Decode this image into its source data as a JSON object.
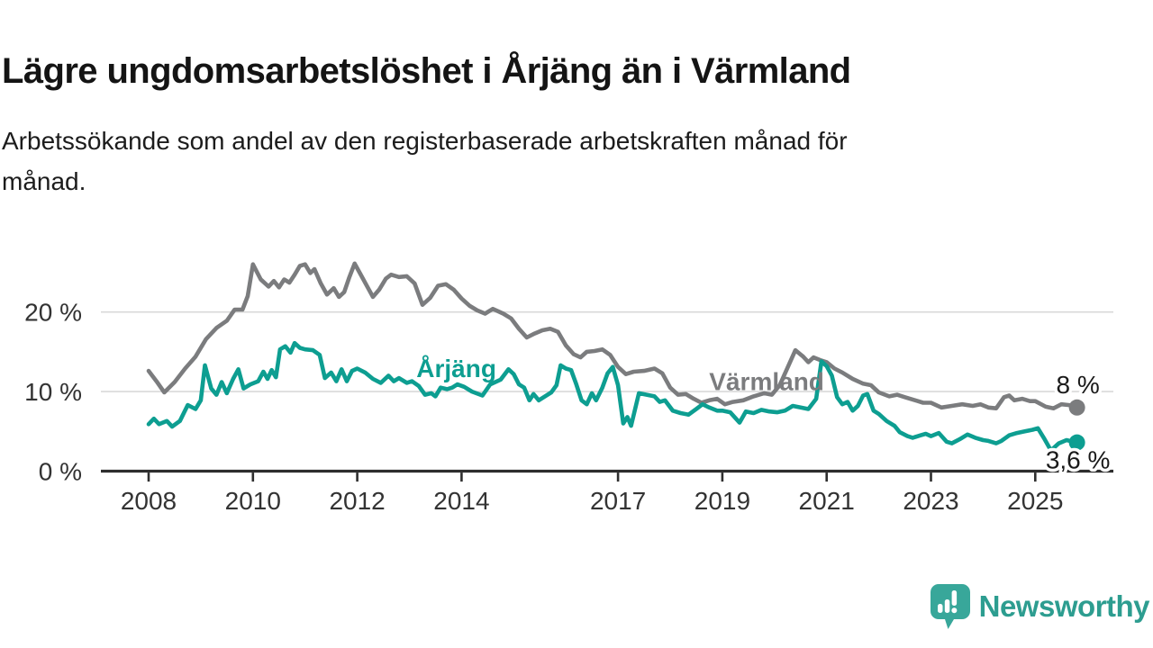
{
  "header": {
    "title": "Lägre ungdomsarbetslöshet i Årjäng än i Värmland",
    "subtitle_lines": [
      "Arbetssökande som andel av den registerbaserade arbetskraften månad för",
      "månad."
    ]
  },
  "footer": {
    "brand": "Newsworthy"
  },
  "colors": {
    "arjang": "#0d9e91",
    "varmland": "#7b7c7e",
    "axis": "#2e2e2e",
    "grid": "#d9d9d9",
    "tick_text": "#333333",
    "end_label_text": "#1a1a1a",
    "brand_teal": "#38a79a"
  },
  "chart_data": {
    "type": "line",
    "title": "Lägre ungdomsarbetslöshet i Årjäng än i Värmland",
    "subtitle": "Arbetssökande som andel av den registerbaserade arbetskraften månad för månad.",
    "xlabel": "",
    "ylabel": "",
    "grid": "horizontal",
    "legend": "inline-labels",
    "xlim": [
      2007.55,
      2026.5
    ],
    "ylim": [
      0,
      27.5
    ],
    "x_ticks": {
      "values": [
        2008,
        2010,
        2012,
        2014,
        2017,
        2019,
        2021,
        2023,
        2025
      ],
      "labels": [
        "2008",
        "2010",
        "2012",
        "2014",
        "2017",
        "2019",
        "2021",
        "2023",
        "2025"
      ]
    },
    "y_ticks": {
      "values": [
        0,
        10,
        20
      ],
      "labels": [
        "0 %",
        "10 %",
        "20 %"
      ]
    },
    "series": [
      {
        "key": "varmland",
        "name": "Värmland",
        "color": "#7b7c7e",
        "label_pos": [
          2019.85,
          11.3
        ],
        "end_label": "8 %",
        "end_label_side": "above",
        "points": [
          [
            2008.0,
            12.6
          ],
          [
            2008.15,
            11.3
          ],
          [
            2008.3,
            9.9
          ],
          [
            2008.5,
            11.2
          ],
          [
            2008.7,
            12.9
          ],
          [
            2008.9,
            14.4
          ],
          [
            2009.1,
            16.6
          ],
          [
            2009.3,
            18.0
          ],
          [
            2009.5,
            18.9
          ],
          [
            2009.65,
            20.3
          ],
          [
            2009.8,
            20.3
          ],
          [
            2009.9,
            22.0
          ],
          [
            2010.0,
            26.0
          ],
          [
            2010.15,
            24.1
          ],
          [
            2010.3,
            23.2
          ],
          [
            2010.4,
            23.9
          ],
          [
            2010.5,
            23.1
          ],
          [
            2010.6,
            24.1
          ],
          [
            2010.7,
            23.7
          ],
          [
            2010.8,
            24.7
          ],
          [
            2010.9,
            25.8
          ],
          [
            2011.0,
            26.0
          ],
          [
            2011.1,
            24.9
          ],
          [
            2011.18,
            25.4
          ],
          [
            2011.3,
            23.6
          ],
          [
            2011.42,
            22.2
          ],
          [
            2011.55,
            23.0
          ],
          [
            2011.65,
            21.9
          ],
          [
            2011.75,
            22.5
          ],
          [
            2011.85,
            24.4
          ],
          [
            2011.95,
            26.1
          ],
          [
            2012.05,
            24.9
          ],
          [
            2012.2,
            23.1
          ],
          [
            2012.3,
            21.9
          ],
          [
            2012.42,
            22.8
          ],
          [
            2012.55,
            24.2
          ],
          [
            2012.65,
            24.7
          ],
          [
            2012.8,
            24.4
          ],
          [
            2012.95,
            24.5
          ],
          [
            2013.1,
            23.6
          ],
          [
            2013.25,
            20.9
          ],
          [
            2013.4,
            21.8
          ],
          [
            2013.55,
            23.3
          ],
          [
            2013.7,
            23.5
          ],
          [
            2013.85,
            22.8
          ],
          [
            2014.0,
            21.7
          ],
          [
            2014.15,
            20.8
          ],
          [
            2014.3,
            20.2
          ],
          [
            2014.45,
            19.8
          ],
          [
            2014.6,
            20.4
          ],
          [
            2014.8,
            19.8
          ],
          [
            2014.95,
            19.2
          ],
          [
            2015.1,
            17.9
          ],
          [
            2015.25,
            16.8
          ],
          [
            2015.4,
            17.3
          ],
          [
            2015.55,
            17.7
          ],
          [
            2015.7,
            17.9
          ],
          [
            2015.85,
            17.5
          ],
          [
            2016.0,
            15.8
          ],
          [
            2016.15,
            14.7
          ],
          [
            2016.28,
            14.3
          ],
          [
            2016.4,
            15.0
          ],
          [
            2016.55,
            15.1
          ],
          [
            2016.7,
            15.3
          ],
          [
            2016.85,
            14.6
          ],
          [
            2017.0,
            13.1
          ],
          [
            2017.15,
            12.2
          ],
          [
            2017.3,
            12.5
          ],
          [
            2017.5,
            12.6
          ],
          [
            2017.7,
            12.9
          ],
          [
            2017.85,
            12.3
          ],
          [
            2018.0,
            10.5
          ],
          [
            2018.15,
            9.6
          ],
          [
            2018.3,
            9.7
          ],
          [
            2018.45,
            9.1
          ],
          [
            2018.6,
            8.6
          ],
          [
            2018.75,
            8.9
          ],
          [
            2018.9,
            9.1
          ],
          [
            2019.05,
            8.4
          ],
          [
            2019.2,
            8.7
          ],
          [
            2019.4,
            8.9
          ],
          [
            2019.6,
            9.4
          ],
          [
            2019.8,
            9.8
          ],
          [
            2019.95,
            9.6
          ],
          [
            2020.1,
            10.8
          ],
          [
            2020.25,
            13.0
          ],
          [
            2020.4,
            15.2
          ],
          [
            2020.55,
            14.4
          ],
          [
            2020.65,
            13.7
          ],
          [
            2020.75,
            14.3
          ],
          [
            2020.9,
            13.9
          ],
          [
            2021.0,
            13.7
          ],
          [
            2021.15,
            12.9
          ],
          [
            2021.3,
            12.4
          ],
          [
            2021.5,
            11.6
          ],
          [
            2021.7,
            11.0
          ],
          [
            2021.85,
            10.8
          ],
          [
            2022.0,
            9.9
          ],
          [
            2022.2,
            9.4
          ],
          [
            2022.35,
            9.6
          ],
          [
            2022.5,
            9.3
          ],
          [
            2022.7,
            8.9
          ],
          [
            2022.85,
            8.6
          ],
          [
            2023.0,
            8.6
          ],
          [
            2023.2,
            8.0
          ],
          [
            2023.4,
            8.2
          ],
          [
            2023.6,
            8.4
          ],
          [
            2023.8,
            8.2
          ],
          [
            2023.95,
            8.4
          ],
          [
            2024.1,
            8.0
          ],
          [
            2024.25,
            7.9
          ],
          [
            2024.4,
            9.3
          ],
          [
            2024.5,
            9.5
          ],
          [
            2024.6,
            8.9
          ],
          [
            2024.75,
            9.1
          ],
          [
            2024.9,
            8.8
          ],
          [
            2025.0,
            8.8
          ],
          [
            2025.2,
            8.1
          ],
          [
            2025.35,
            7.9
          ],
          [
            2025.5,
            8.4
          ],
          [
            2025.65,
            8.3
          ],
          [
            2025.8,
            8.0
          ]
        ]
      },
      {
        "key": "arjang",
        "name": "Årjäng",
        "color": "#0d9e91",
        "label_pos": [
          2013.9,
          12.95
        ],
        "end_label": "3,6 %",
        "end_label_side": "below",
        "points": [
          [
            2008.0,
            5.9
          ],
          [
            2008.1,
            6.6
          ],
          [
            2008.2,
            5.9
          ],
          [
            2008.35,
            6.3
          ],
          [
            2008.45,
            5.6
          ],
          [
            2008.6,
            6.3
          ],
          [
            2008.75,
            8.3
          ],
          [
            2008.9,
            7.8
          ],
          [
            2009.0,
            8.9
          ],
          [
            2009.08,
            13.3
          ],
          [
            2009.2,
            10.4
          ],
          [
            2009.3,
            9.6
          ],
          [
            2009.4,
            11.2
          ],
          [
            2009.5,
            9.8
          ],
          [
            2009.62,
            11.6
          ],
          [
            2009.72,
            12.8
          ],
          [
            2009.82,
            10.4
          ],
          [
            2009.95,
            10.9
          ],
          [
            2010.1,
            11.3
          ],
          [
            2010.2,
            12.5
          ],
          [
            2010.28,
            11.6
          ],
          [
            2010.36,
            12.7
          ],
          [
            2010.44,
            11.8
          ],
          [
            2010.52,
            15.3
          ],
          [
            2010.62,
            15.7
          ],
          [
            2010.72,
            14.9
          ],
          [
            2010.8,
            16.1
          ],
          [
            2010.9,
            15.5
          ],
          [
            2011.0,
            15.3
          ],
          [
            2011.15,
            15.2
          ],
          [
            2011.28,
            14.6
          ],
          [
            2011.38,
            11.7
          ],
          [
            2011.5,
            12.4
          ],
          [
            2011.6,
            11.3
          ],
          [
            2011.7,
            12.8
          ],
          [
            2011.8,
            11.3
          ],
          [
            2011.9,
            12.6
          ],
          [
            2012.0,
            12.9
          ],
          [
            2012.15,
            12.4
          ],
          [
            2012.3,
            11.6
          ],
          [
            2012.45,
            11.1
          ],
          [
            2012.6,
            12.0
          ],
          [
            2012.7,
            11.3
          ],
          [
            2012.8,
            11.7
          ],
          [
            2012.95,
            11.1
          ],
          [
            2013.05,
            11.3
          ],
          [
            2013.18,
            10.7
          ],
          [
            2013.3,
            9.6
          ],
          [
            2013.42,
            9.8
          ],
          [
            2013.5,
            9.4
          ],
          [
            2013.6,
            10.5
          ],
          [
            2013.72,
            10.3
          ],
          [
            2013.82,
            10.5
          ],
          [
            2013.92,
            10.9
          ],
          [
            2014.05,
            10.6
          ],
          [
            2014.2,
            10.0
          ],
          [
            2014.4,
            9.5
          ],
          [
            2014.55,
            10.9
          ],
          [
            2014.75,
            11.5
          ],
          [
            2014.9,
            12.8
          ],
          [
            2015.0,
            12.2
          ],
          [
            2015.1,
            10.9
          ],
          [
            2015.2,
            10.5
          ],
          [
            2015.3,
            8.9
          ],
          [
            2015.38,
            9.7
          ],
          [
            2015.48,
            8.9
          ],
          [
            2015.6,
            9.4
          ],
          [
            2015.72,
            9.9
          ],
          [
            2015.82,
            10.8
          ],
          [
            2015.9,
            13.3
          ],
          [
            2016.0,
            12.9
          ],
          [
            2016.1,
            12.7
          ],
          [
            2016.2,
            10.9
          ],
          [
            2016.3,
            8.9
          ],
          [
            2016.4,
            8.4
          ],
          [
            2016.5,
            9.8
          ],
          [
            2016.58,
            8.9
          ],
          [
            2016.7,
            10.5
          ],
          [
            2016.8,
            12.3
          ],
          [
            2016.9,
            13.1
          ],
          [
            2017.0,
            10.8
          ],
          [
            2017.1,
            6.0
          ],
          [
            2017.18,
            6.8
          ],
          [
            2017.25,
            5.7
          ],
          [
            2017.4,
            9.8
          ],
          [
            2017.55,
            9.6
          ],
          [
            2017.7,
            9.4
          ],
          [
            2017.8,
            8.7
          ],
          [
            2017.9,
            8.9
          ],
          [
            2018.05,
            7.6
          ],
          [
            2018.2,
            7.3
          ],
          [
            2018.35,
            7.1
          ],
          [
            2018.5,
            7.8
          ],
          [
            2018.62,
            8.4
          ],
          [
            2018.75,
            8.0
          ],
          [
            2018.9,
            7.6
          ],
          [
            2019.0,
            7.6
          ],
          [
            2019.15,
            7.4
          ],
          [
            2019.33,
            6.1
          ],
          [
            2019.45,
            7.5
          ],
          [
            2019.6,
            7.3
          ],
          [
            2019.75,
            7.7
          ],
          [
            2019.9,
            7.5
          ],
          [
            2020.05,
            7.4
          ],
          [
            2020.2,
            7.6
          ],
          [
            2020.35,
            8.2
          ],
          [
            2020.5,
            8.0
          ],
          [
            2020.65,
            7.8
          ],
          [
            2020.8,
            9.1
          ],
          [
            2020.9,
            13.8
          ],
          [
            2021.0,
            13.2
          ],
          [
            2021.1,
            12.0
          ],
          [
            2021.2,
            9.3
          ],
          [
            2021.3,
            8.4
          ],
          [
            2021.4,
            8.7
          ],
          [
            2021.5,
            7.6
          ],
          [
            2021.6,
            8.2
          ],
          [
            2021.7,
            9.5
          ],
          [
            2021.78,
            9.7
          ],
          [
            2021.9,
            7.6
          ],
          [
            2022.0,
            7.2
          ],
          [
            2022.15,
            6.3
          ],
          [
            2022.3,
            5.7
          ],
          [
            2022.4,
            4.9
          ],
          [
            2022.55,
            4.4
          ],
          [
            2022.65,
            4.2
          ],
          [
            2022.8,
            4.5
          ],
          [
            2022.9,
            4.7
          ],
          [
            2023.0,
            4.4
          ],
          [
            2023.15,
            4.8
          ],
          [
            2023.3,
            3.7
          ],
          [
            2023.4,
            3.5
          ],
          [
            2023.55,
            4.0
          ],
          [
            2023.7,
            4.6
          ],
          [
            2023.85,
            4.2
          ],
          [
            2024.0,
            3.9
          ],
          [
            2024.1,
            3.8
          ],
          [
            2024.25,
            3.5
          ],
          [
            2024.35,
            3.8
          ],
          [
            2024.5,
            4.5
          ],
          [
            2024.65,
            4.8
          ],
          [
            2024.8,
            5.0
          ],
          [
            2024.95,
            5.2
          ],
          [
            2025.05,
            5.4
          ],
          [
            2025.18,
            4.0
          ],
          [
            2025.3,
            2.6
          ],
          [
            2025.45,
            3.5
          ],
          [
            2025.6,
            3.9
          ],
          [
            2025.8,
            3.6
          ]
        ]
      }
    ]
  }
}
